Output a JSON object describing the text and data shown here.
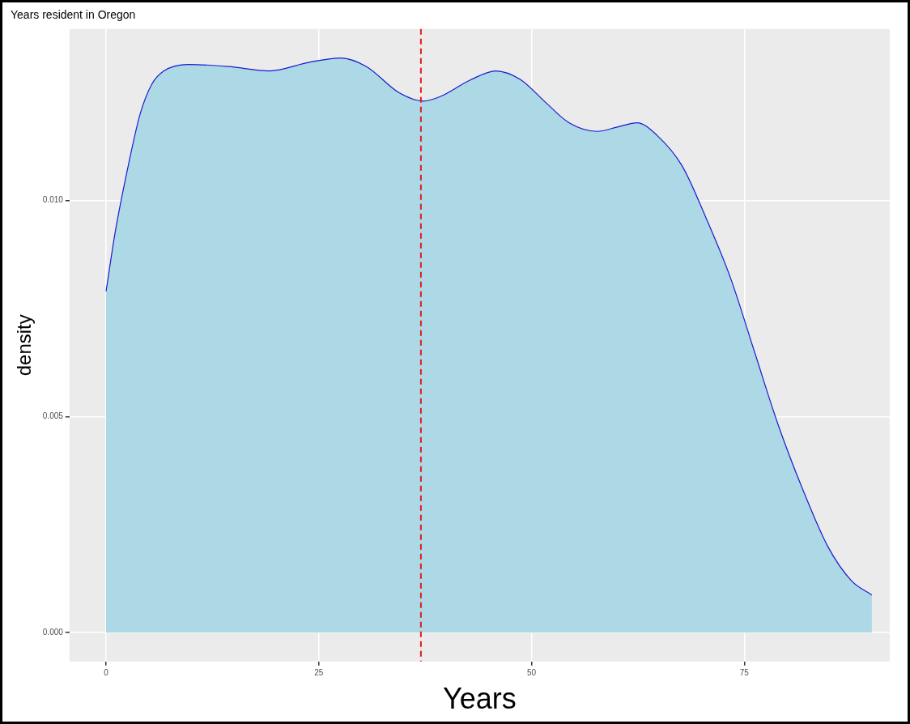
{
  "chart_data": {
    "type": "area",
    "title": "Years resident in Oregon",
    "xlabel": "Years",
    "ylabel": "density",
    "xlim": [
      -4.3,
      92.1
    ],
    "ylim": [
      -0.00067,
      0.01397
    ],
    "xticks": [
      0,
      25,
      50,
      75
    ],
    "yticks": [
      {
        "value": 0,
        "label": "0.000"
      },
      {
        "value": 0.005,
        "label": "0.005"
      },
      {
        "value": 0.01,
        "label": "0.010"
      }
    ],
    "grid": true,
    "legend": false,
    "marker": "none",
    "line_style": "solid",
    "ref_lines": [
      {
        "axis": "x",
        "value": 37,
        "color": "#e41a1c",
        "line_style": "dashed"
      }
    ],
    "series": [
      {
        "color": "#add8e6",
        "x": [
          0,
          1.1,
          2.6,
          4.0,
          5.4,
          6.8,
          9.7,
          14.4,
          19.2,
          23.9,
          27.6,
          30.6,
          34.4,
          37.3,
          39.2,
          42.9,
          45.8,
          48.7,
          51.5,
          54.4,
          57.7,
          60.1,
          62.4,
          64.8,
          67.7,
          70.5,
          73.4,
          76.2,
          79.0,
          81.9,
          84.8,
          87.6,
          90.0
        ],
        "values": [
          0.0079,
          0.0093,
          0.0108,
          0.012,
          0.0127,
          0.013,
          0.01315,
          0.0131,
          0.013,
          0.0132,
          0.0133,
          0.0131,
          0.0125,
          0.0123,
          0.0124,
          0.0128,
          0.013,
          0.0128,
          0.0123,
          0.0118,
          0.0116,
          0.0117,
          0.0118,
          0.0115,
          0.0108,
          0.0096,
          0.0082,
          0.0065,
          0.0048,
          0.0033,
          0.002,
          0.0012,
          0.00087
        ]
      }
    ]
  }
}
